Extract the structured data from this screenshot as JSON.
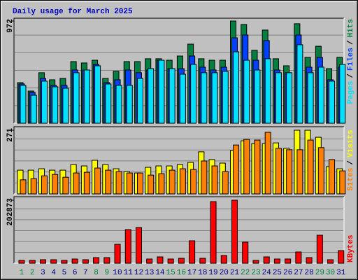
{
  "legend_separator": "/",
  "chart_data": [
    {
      "type": "bar",
      "title": "Daily usage for March 2025",
      "ylim": [
        0,
        972
      ],
      "yticks": [
        972
      ],
      "series": [
        {
          "name": "Pages",
          "color": "#00e0ff",
          "values": [
            360,
            266,
            400,
            346,
            333,
            480,
            506,
            546,
            373,
            360,
            360,
            426,
            519,
            599,
            519,
            466,
            559,
            480,
            480,
            493,
            679,
            599,
            506,
            613,
            480,
            480,
            746,
            480,
            533,
            400,
            559
          ]
        },
        {
          "name": "Files",
          "color": "#0040ff",
          "values": [
            373,
            293,
            426,
            360,
            360,
            506,
            506,
            559,
            386,
            413,
            506,
            480,
            506,
            599,
            519,
            519,
            639,
            533,
            506,
            533,
            812,
            839,
            599,
            786,
            506,
            480,
            839,
            533,
            626,
            413,
            533
          ]
        },
        {
          "name": "Hits",
          "color": "#008040",
          "values": [
            386,
            306,
            480,
            413,
            426,
            586,
            573,
            599,
            426,
            493,
            586,
            586,
            613,
            613,
            599,
            639,
            752,
            613,
            599,
            599,
            972,
            939,
            693,
            886,
            613,
            546,
            946,
            626,
            732,
            519,
            626
          ]
        }
      ]
    },
    {
      "type": "bar",
      "ylim": [
        0,
        271
      ],
      "yticks": [
        271
      ],
      "series": [
        {
          "name": "Sites",
          "color": "#ff8000",
          "values": [
            60,
            65,
            77,
            83,
            71,
            89,
            92,
            110,
            101,
            95,
            89,
            89,
            80,
            86,
            101,
            107,
            104,
            140,
            119,
            95,
            208,
            232,
            229,
            262,
            194,
            188,
            188,
            229,
            197,
            146,
            98
          ]
        },
        {
          "name": "Visits",
          "color": "#ffff00",
          "values": [
            101,
            101,
            107,
            101,
            101,
            125,
            119,
            143,
            125,
            107,
            95,
            89,
            113,
            119,
            119,
            125,
            134,
            179,
            146,
            131,
            185,
            226,
            214,
            214,
            217,
            194,
            271,
            271,
            241,
            116,
            107
          ]
        }
      ]
    },
    {
      "type": "bar",
      "ylim": [
        0,
        202873
      ],
      "yticks": [
        202873
      ],
      "categories": [
        "1",
        "2",
        "3",
        "4",
        "5",
        "6",
        "7",
        "8",
        "9",
        "10",
        "11",
        "12",
        "13",
        "14",
        "15",
        "16",
        "17",
        "18",
        "19",
        "20",
        "21",
        "22",
        "23",
        "24",
        "25",
        "26",
        "27",
        "28",
        "29",
        "30",
        "31"
      ],
      "category_colors": [
        "#008040",
        "#008040",
        "#000080",
        "#000080",
        "#000080",
        "#000080",
        "#000080",
        "#008040",
        "#008040",
        "#000080",
        "#000080",
        "#000080",
        "#000080",
        "#000080",
        "#008040",
        "#008040",
        "#000080",
        "#000080",
        "#000080",
        "#000080",
        "#000080",
        "#008040",
        "#008040",
        "#000080",
        "#000080",
        "#000080",
        "#000080",
        "#000080",
        "#008040",
        "#008040",
        "#000080"
      ],
      "series": [
        {
          "name": "KBytes",
          "color": "#ff0000",
          "values": [
            9016,
            9016,
            11271,
            11271,
            9016,
            13525,
            11271,
            18033,
            18033,
            60862,
            108199,
            114964,
            13525,
            20287,
            13525,
            15779,
            72132,
            15779,
            198364,
            24796,
            202873,
            67624,
            9016,
            20287,
            13525,
            13525,
            36066,
            18033,
            90166,
            11271,
            40575
          ]
        }
      ]
    }
  ]
}
